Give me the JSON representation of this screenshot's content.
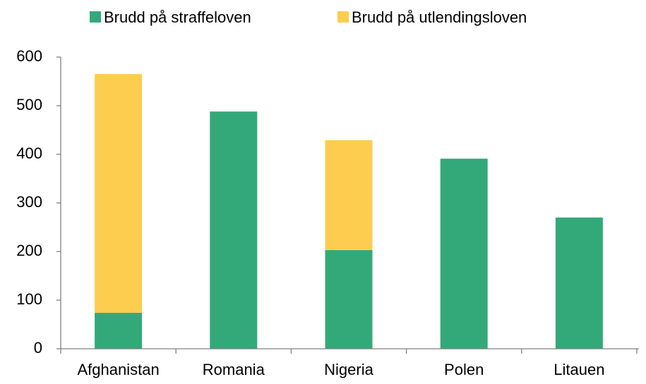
{
  "chart_data": {
    "type": "stacked_bar",
    "categories": [
      "Afghanistan",
      "Romania",
      "Nigeria",
      "Polen",
      "Litauen"
    ],
    "series": [
      {
        "name": "Brudd på straffeloven",
        "color": "#33a97a",
        "values": [
          74,
          488,
          203,
          391,
          270
        ]
      },
      {
        "name": "Brudd på utlendingsloven",
        "color": "#fdcd50",
        "values": [
          491,
          0,
          226,
          0,
          0
        ]
      }
    ],
    "ylim": [
      0,
      600
    ],
    "yticks": [
      0,
      100,
      200,
      300,
      400,
      500,
      600
    ],
    "grid": false,
    "legend": "top"
  }
}
